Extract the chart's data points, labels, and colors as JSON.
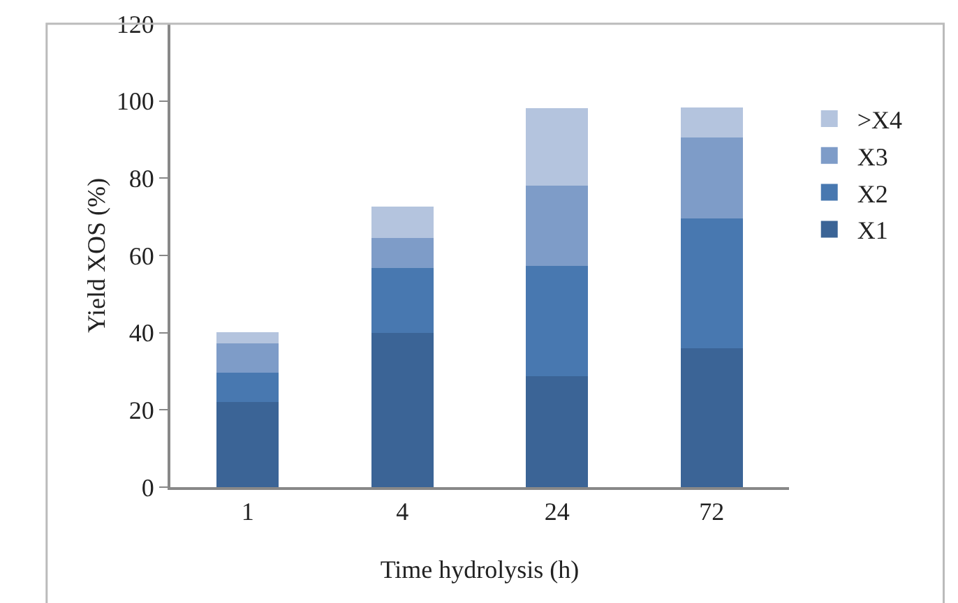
{
  "chart_data": {
    "type": "bar",
    "stacked": true,
    "xlabel": "Time hydrolysis (h)",
    "ylabel": "Yield XOS (%)",
    "categories": [
      "1",
      "4",
      "24",
      "72"
    ],
    "series": [
      {
        "name": "X1",
        "color": "#3b6496",
        "values": [
          22,
          40,
          28.8,
          36
        ]
      },
      {
        "name": "X2",
        "color": "#4878b0",
        "values": [
          7.7,
          16.8,
          28.5,
          33.6
        ]
      },
      {
        "name": "X3",
        "color": "#7e9cc8",
        "values": [
          7.5,
          7.8,
          20.7,
          21
        ]
      },
      {
        "name": ">X4",
        "color": "#b4c4de",
        "values": [
          2.9,
          8.1,
          20.1,
          7.8
        ]
      }
    ],
    "ylim": [
      0,
      120
    ],
    "yticks": [
      0,
      20,
      40,
      60,
      80,
      100,
      120
    ],
    "grid": false,
    "legend": "right"
  }
}
